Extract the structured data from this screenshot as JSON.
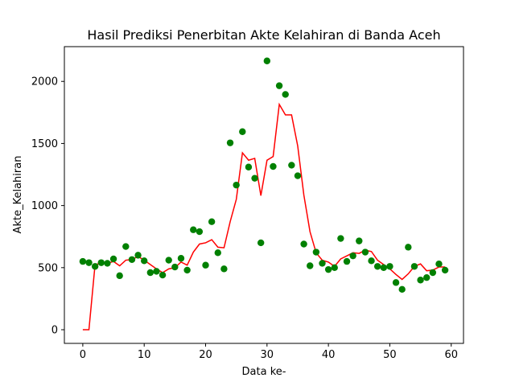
{
  "chart_data": {
    "type": "scatter",
    "title": "Hasil Prediksi Penerbitan Akte Kelahiran di Banda Aceh",
    "xlabel": "Data ke-",
    "ylabel": "Akte_Kelahiran",
    "xlim": [
      -3,
      62
    ],
    "ylim": [
      -110,
      2280
    ],
    "xticks": [
      0,
      10,
      20,
      30,
      40,
      50,
      60
    ],
    "yticks": [
      0,
      500,
      1000,
      1500,
      2000
    ],
    "grid": false,
    "series": [
      {
        "kind": "scatter",
        "color": "#008000",
        "x": [
          0,
          1,
          2,
          3,
          4,
          5,
          6,
          7,
          8,
          9,
          10,
          11,
          12,
          13,
          14,
          15,
          16,
          17,
          18,
          19,
          20,
          21,
          22,
          23,
          24,
          25,
          26,
          27,
          28,
          29,
          30,
          31,
          32,
          33,
          34,
          35,
          36,
          37,
          38,
          39,
          40,
          41,
          42,
          43,
          44,
          45,
          46,
          47,
          48,
          49,
          50,
          51,
          52,
          53,
          54,
          55,
          56,
          57,
          58,
          59
        ],
        "y": [
          550,
          540,
          510,
          540,
          535,
          570,
          435,
          670,
          565,
          600,
          555,
          460,
          470,
          440,
          560,
          505,
          575,
          480,
          805,
          790,
          520,
          870,
          620,
          490,
          1505,
          1165,
          1595,
          1310,
          1220,
          700,
          2165,
          1315,
          1965,
          1895,
          1325,
          1240,
          690,
          515,
          625,
          535,
          485,
          500,
          735,
          550,
          595,
          715,
          625,
          555,
          510,
          500,
          510,
          380,
          325,
          665,
          510,
          400,
          420,
          460,
          530,
          480
        ]
      },
      {
        "kind": "line",
        "color": "#ff0000",
        "x": [
          0,
          1,
          2,
          3,
          4,
          5,
          6,
          7,
          8,
          9,
          10,
          11,
          12,
          13,
          14,
          15,
          16,
          17,
          18,
          19,
          20,
          21,
          22,
          23,
          24,
          25,
          26,
          27,
          28,
          29,
          30,
          31,
          32,
          33,
          34,
          35,
          36,
          37,
          38,
          39,
          40,
          41,
          42,
          43,
          44,
          45,
          46,
          47,
          48,
          49,
          50,
          51,
          52,
          53,
          54,
          55,
          56,
          57,
          58,
          59
        ],
        "y": [
          0,
          0,
          525,
          535,
          535,
          550,
          515,
          560,
          565,
          590,
          560,
          525,
          490,
          460,
          490,
          500,
          545,
          520,
          625,
          690,
          700,
          725,
          665,
          660,
          870,
          1050,
          1425,
          1365,
          1380,
          1080,
          1365,
          1395,
          1815,
          1730,
          1730,
          1480,
          1085,
          790,
          620,
          560,
          545,
          510,
          570,
          595,
          620,
          615,
          640,
          630,
          560,
          525,
          490,
          445,
          405,
          450,
          510,
          530,
          475,
          480,
          505,
          505
        ]
      }
    ]
  }
}
